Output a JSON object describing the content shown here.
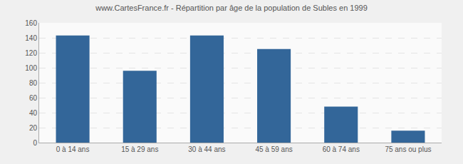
{
  "chart_data": {
    "type": "bar",
    "title": "www.CartesFrance.fr - Répartition par âge de la population de Subles en 1999",
    "categories": [
      "0 à 14 ans",
      "15 à 29 ans",
      "30 à 44 ans",
      "45 à 59 ans",
      "60 à 74 ans",
      "75 ans ou plus"
    ],
    "values": [
      143,
      96,
      143,
      125,
      48,
      16
    ],
    "color": "#336699",
    "ylim": [
      0,
      160
    ],
    "yticks": [
      0,
      20,
      40,
      60,
      80,
      100,
      120,
      140,
      160
    ],
    "grid": true
  }
}
